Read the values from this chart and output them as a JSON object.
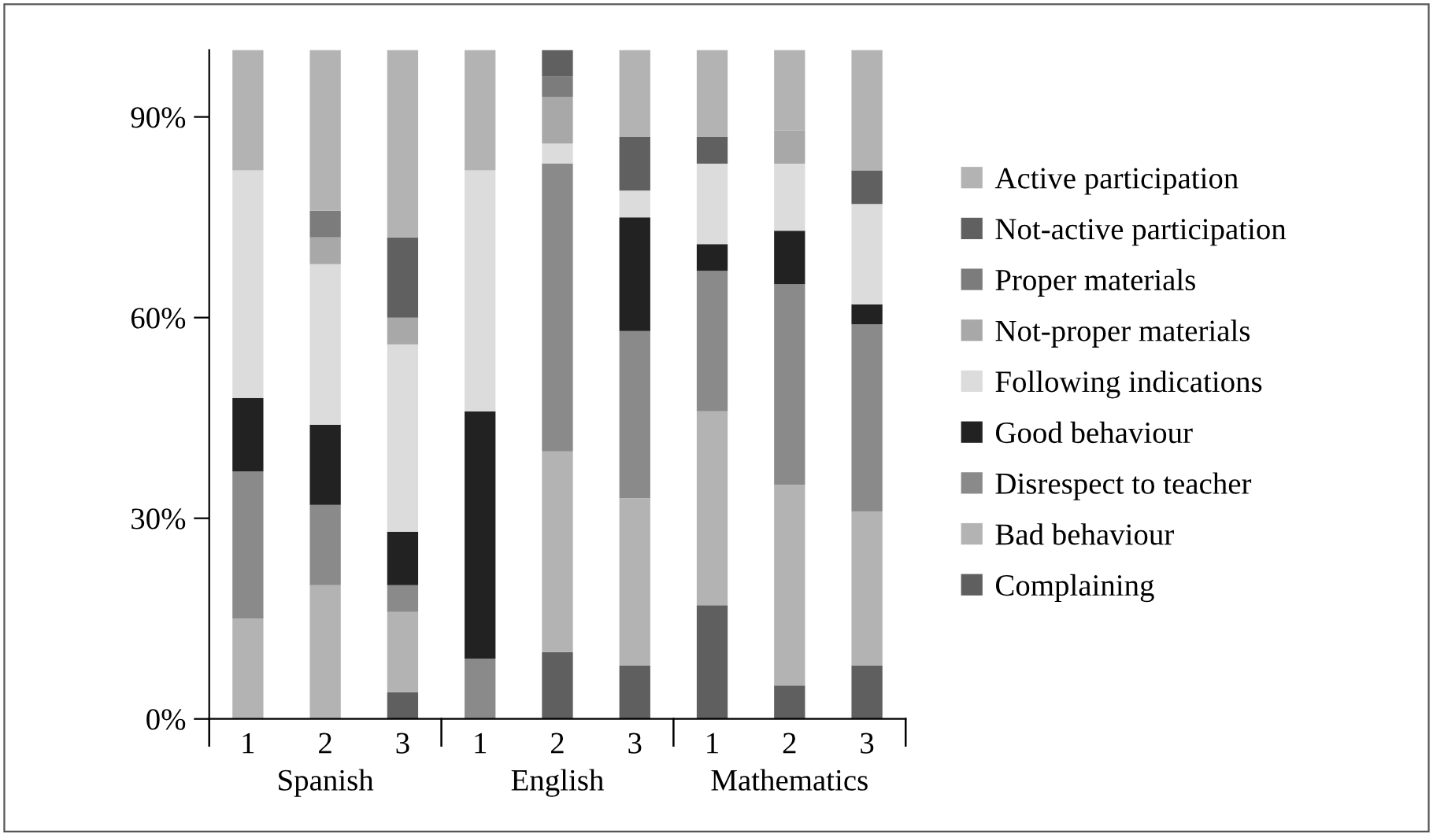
{
  "chart_data": {
    "type": "bar",
    "stacked": true,
    "categories": [
      "1",
      "2",
      "3",
      "1",
      "2",
      "3",
      "1",
      "2",
      "3"
    ],
    "annotations": [
      "Spanish",
      "English",
      "Mathematics"
    ],
    "ylim": [
      0,
      100
    ],
    "yticks": [
      {
        "value": 0,
        "label": "0%"
      },
      {
        "value": 30,
        "label": "30%"
      },
      {
        "value": 60,
        "label": "60%"
      },
      {
        "value": 90,
        "label": "90%"
      }
    ],
    "grid": false,
    "legend": "right",
    "series": [
      {
        "name": "Complaining",
        "color": "#5f5f5f",
        "values": [
          0,
          0,
          4,
          0,
          10,
          8,
          17,
          5,
          8
        ]
      },
      {
        "name": "Bad behaviour",
        "color": "#b3b3b3",
        "values": [
          15,
          20,
          12,
          0,
          30,
          25,
          29,
          30,
          23
        ]
      },
      {
        "name": "Disrespect to teacher",
        "color": "#8a8a8a",
        "values": [
          22,
          12,
          4,
          9,
          43,
          25,
          21,
          30,
          28
        ]
      },
      {
        "name": "Good behaviour",
        "color": "#222222",
        "values": [
          11,
          12,
          8,
          37,
          0,
          17,
          4,
          8,
          3
        ]
      },
      {
        "name": "Following indications",
        "color": "#dcdcdc",
        "values": [
          34,
          24,
          28,
          36,
          3,
          4,
          12,
          10,
          15
        ]
      },
      {
        "name": "Not-proper materials",
        "color": "#a8a8a8",
        "values": [
          0,
          4,
          4,
          0,
          7,
          0,
          0,
          5,
          0
        ]
      },
      {
        "name": "Proper materials",
        "color": "#7c7c7c",
        "values": [
          0,
          4,
          0,
          0,
          3,
          0,
          0,
          0,
          0
        ]
      },
      {
        "name": "Not-active participation",
        "color": "#606060",
        "values": [
          0,
          0,
          12,
          0,
          4,
          8,
          4,
          0,
          5
        ]
      },
      {
        "name": "Active participation",
        "color": "#b3b3b3",
        "values": [
          18,
          24,
          28,
          18,
          0,
          13,
          13,
          12,
          18
        ]
      }
    ]
  }
}
